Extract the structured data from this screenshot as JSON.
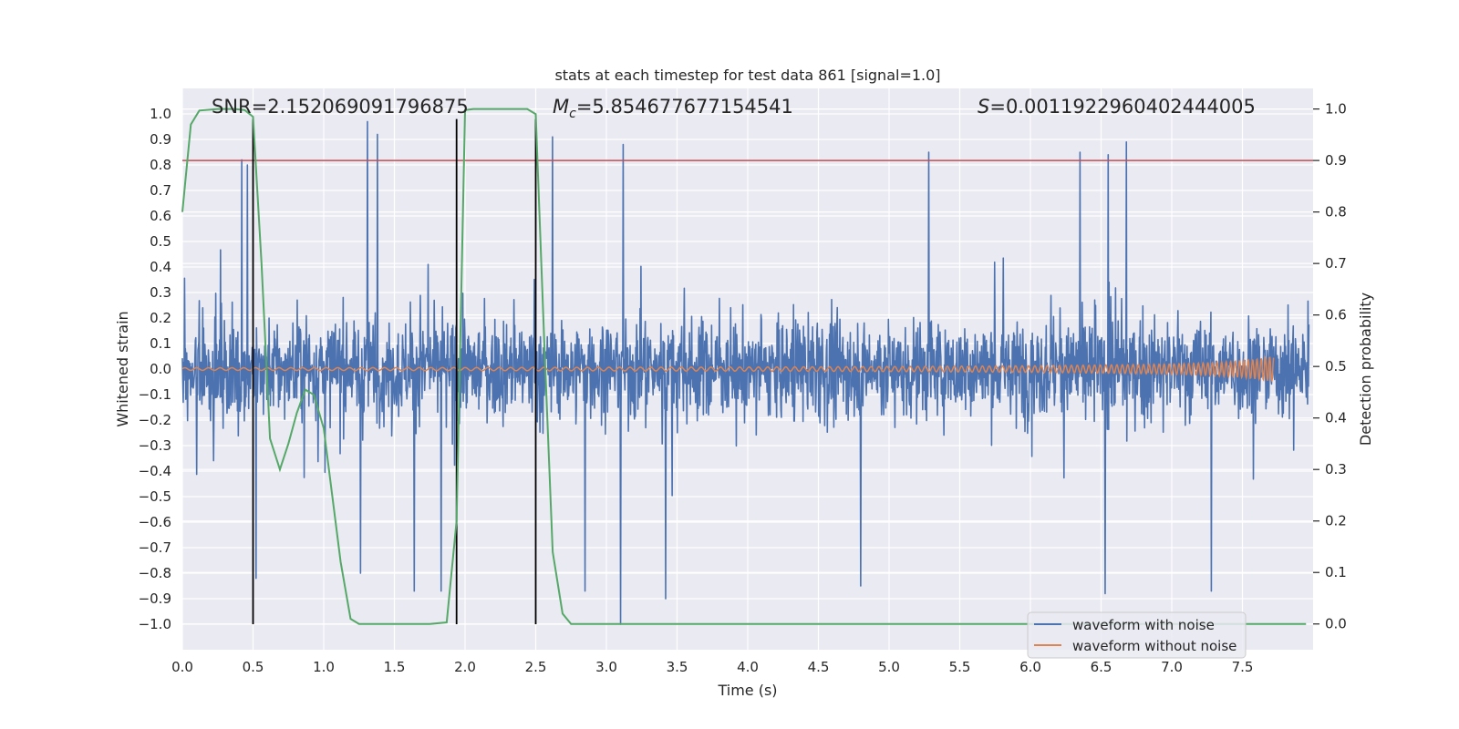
{
  "chart_data": {
    "type": "line",
    "title": "stats at each timestep for test data 861 [signal=1.0]",
    "xlabel": "Time (s)",
    "ylabel": "Whitened strain",
    "ylabel_right": "Detection probability",
    "xlim": [
      0.0,
      8.0
    ],
    "ylim": [
      -1.1,
      1.1
    ],
    "ylim_right": [
      -0.05,
      1.04
    ],
    "x_ticks": [
      0.0,
      0.5,
      1.0,
      1.5,
      2.0,
      2.5,
      3.0,
      3.5,
      4.0,
      4.5,
      5.0,
      5.5,
      6.0,
      6.5,
      7.0,
      7.5
    ],
    "x_tick_labels": [
      "0.0",
      "0.5",
      "1.0",
      "1.5",
      "2.0",
      "2.5",
      "3.0",
      "3.5",
      "4.0",
      "4.5",
      "5.0",
      "5.5",
      "6.0",
      "6.5",
      "7.0",
      "7.5"
    ],
    "y_ticks": [
      1.0,
      0.9,
      0.8,
      0.7,
      0.6,
      0.5,
      0.4,
      0.3,
      0.2,
      0.1,
      0.0,
      -0.1,
      -0.2,
      -0.3,
      -0.4,
      -0.5,
      -0.6,
      -0.7,
      -0.8,
      -0.9,
      -1.0
    ],
    "y_tick_labels": [
      "1.0",
      "0.9",
      "0.8",
      "0.7",
      "0.6",
      "0.5",
      "0.4",
      "0.3",
      "0.2",
      "0.1",
      "0.0",
      "−0.1",
      "−0.2",
      "−0.3",
      "−0.4",
      "−0.5",
      "−0.6",
      "−0.7",
      "−0.8",
      "−0.9",
      "−1.0"
    ],
    "y_right_ticks": [
      1.0,
      0.9,
      0.8,
      0.7,
      0.6,
      0.5,
      0.4,
      0.3,
      0.2,
      0.1,
      0.0
    ],
    "y_right_tick_labels": [
      "1.0",
      "0.9",
      "0.8",
      "0.7",
      "0.6",
      "0.5",
      "0.4",
      "0.3",
      "0.2",
      "0.1",
      "0.0"
    ],
    "annotations": {
      "snr": "SNR=2.152069091796875",
      "mc_symbol": "M",
      "mc_subscript": "c",
      "mc_value": "=5.854677677154541",
      "s_symbol": "S",
      "s_value": "=0.0011922960402444005"
    },
    "legend": {
      "placement": "lower right",
      "entries": [
        "waveform with noise",
        "waveform without noise"
      ]
    },
    "threshold_right": 0.9,
    "vertical_markers": [
      0.5,
      1.94,
      2.5
    ],
    "detection_probability": {
      "x": [
        0.0,
        0.06,
        0.12,
        0.25,
        0.37,
        0.44,
        0.5,
        0.56,
        0.62,
        0.69,
        0.75,
        0.81,
        0.87,
        0.93,
        1.0,
        1.06,
        1.12,
        1.19,
        1.25,
        1.31,
        1.5,
        1.75,
        1.87,
        1.94,
        2.0,
        2.06,
        2.25,
        2.44,
        2.5,
        2.56,
        2.62,
        2.69,
        2.75,
        3.0,
        4.0,
        5.0,
        6.0,
        7.0,
        7.95
      ],
      "y": [
        0.8,
        0.97,
        0.997,
        1.0,
        1.0,
        0.998,
        0.985,
        0.7,
        0.36,
        0.3,
        0.35,
        0.41,
        0.455,
        0.445,
        0.38,
        0.25,
        0.12,
        0.01,
        0.0,
        0.0,
        0.0,
        0.0,
        0.003,
        0.2,
        0.998,
        1.0,
        1.0,
        1.0,
        0.99,
        0.55,
        0.14,
        0.02,
        0.0,
        0.0,
        0.0,
        0.0,
        0.0,
        0.0,
        0.0
      ]
    },
    "waveform_with_noise": {
      "description_shown": "dense whitened-strain noise trace spanning the full time range",
      "typical_range": [
        -0.5,
        0.55
      ],
      "peaks": [
        {
          "x": 0.42,
          "y": 0.82
        },
        {
          "x": 0.46,
          "y": 0.8
        },
        {
          "x": 0.52,
          "y": 0.85
        },
        {
          "x": 1.31,
          "y": 0.97
        },
        {
          "x": 1.38,
          "y": 0.92
        },
        {
          "x": 2.62,
          "y": 0.91
        },
        {
          "x": 3.12,
          "y": 0.88
        },
        {
          "x": 5.28,
          "y": 0.85
        },
        {
          "x": 6.35,
          "y": 0.85
        },
        {
          "x": 6.55,
          "y": 0.84
        },
        {
          "x": 6.68,
          "y": 0.89
        }
      ],
      "troughs": [
        {
          "x": 0.52,
          "y": -0.82
        },
        {
          "x": 1.26,
          "y": -0.8
        },
        {
          "x": 1.64,
          "y": -0.87
        },
        {
          "x": 1.83,
          "y": -0.87
        },
        {
          "x": 2.85,
          "y": -0.87
        },
        {
          "x": 3.1,
          "y": -1.0
        },
        {
          "x": 3.42,
          "y": -0.9
        },
        {
          "x": 4.8,
          "y": -0.85
        },
        {
          "x": 6.53,
          "y": -0.88
        },
        {
          "x": 7.28,
          "y": -0.87
        }
      ]
    },
    "waveform_without_noise": {
      "description_shown": "chirp with amplitude growing toward merger",
      "x": [
        0.0,
        2.0,
        4.0,
        5.0,
        6.0,
        6.5,
        7.0,
        7.3,
        7.5,
        7.65,
        7.72
      ],
      "amplitude": [
        0.005,
        0.006,
        0.008,
        0.01,
        0.013,
        0.016,
        0.02,
        0.026,
        0.033,
        0.043,
        0.05
      ],
      "end_time": 7.72
    },
    "colors": {
      "noise": "#4c72b0",
      "clean": "#dd8452",
      "probability": "#55a868",
      "threshold": "#c44e52",
      "markers": "#000000",
      "plot_background": "#eaeaf2",
      "grid": "#ffffff"
    }
  }
}
